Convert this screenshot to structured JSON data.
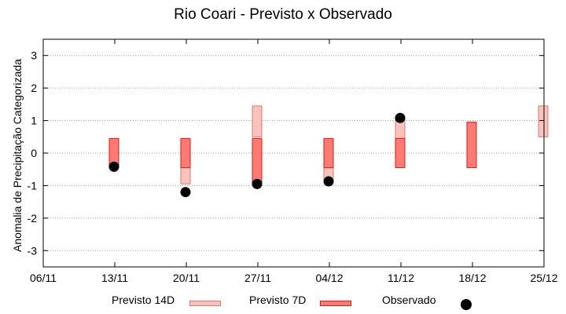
{
  "chart_data": {
    "type": "range-bar+scatter",
    "title": "Rio Coari - Previsto x Observado",
    "xlabel": "",
    "ylabel": "Anomalia de Precipitação Categorizada",
    "x_ticks": [
      "06/11",
      "13/11",
      "20/11",
      "27/11",
      "04/12",
      "11/12",
      "18/12",
      "25/12"
    ],
    "y_ticks": [
      "-3",
      "-2",
      "-1",
      "0",
      "1",
      "2",
      "3"
    ],
    "ylim": [
      -3.5,
      3.5
    ],
    "xlim": [
      "06/11",
      "25/12"
    ],
    "grid": true,
    "legend_position": "bottom",
    "series": [
      {
        "name": "Previsto 14D",
        "kind": "range",
        "color_fill": "#f8c3bd",
        "color_edge": "#e07a70",
        "ranges": [
          {
            "x": "20/11",
            "low": -0.95,
            "high": -0.45
          },
          {
            "x": "27/11",
            "low": 0.5,
            "high": 1.45
          },
          {
            "x": "04/12",
            "low": -0.8,
            "high": -0.45
          },
          {
            "x": "11/12",
            "low": 0.45,
            "high": 1.05
          },
          {
            "x": "25/12",
            "low": 0.5,
            "high": 1.45
          }
        ]
      },
      {
        "name": "Previsto 7D",
        "kind": "range",
        "color_fill": "#ff7a72",
        "color_edge": "#cc1f1f",
        "ranges": [
          {
            "x": "13/11",
            "low": -0.45,
            "high": 0.45
          },
          {
            "x": "20/11",
            "low": -0.45,
            "high": 0.45
          },
          {
            "x": "27/11",
            "low": -0.95,
            "high": 0.45
          },
          {
            "x": "04/12",
            "low": -0.45,
            "high": 0.45
          },
          {
            "x": "11/12",
            "low": -0.45,
            "high": 0.45
          },
          {
            "x": "18/12",
            "low": -0.45,
            "high": 0.95
          }
        ]
      },
      {
        "name": "Observado",
        "kind": "scatter",
        "color": "#000000",
        "points": [
          {
            "x": "13/11",
            "y": -0.42
          },
          {
            "x": "20/11",
            "y": -1.2
          },
          {
            "x": "27/11",
            "y": -0.95
          },
          {
            "x": "04/12",
            "y": -0.87
          },
          {
            "x": "11/12",
            "y": 1.08
          }
        ]
      }
    ]
  }
}
